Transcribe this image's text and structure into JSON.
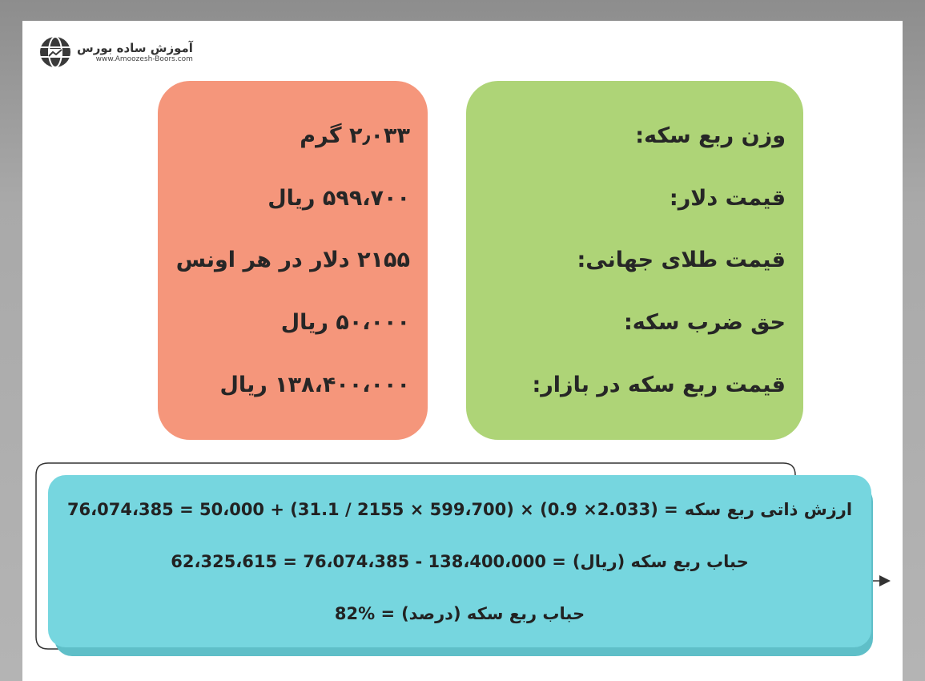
{
  "logo": {
    "name": "آموزش ساده بورس",
    "url": "www.Amoozesh-Boors.com"
  },
  "labels": [
    "وزن ربع سکه:",
    "قیمت دلار:",
    "قیمت طلای جهانی:",
    "حق ضرب سکه:",
    "قیمت ربع سکه در بازار:"
  ],
  "values": [
    "۲٫۰۳۳ گرم",
    "۵۹۹،۷۰۰ ریال",
    "۲۱۵۵ دلار در هر اونس",
    "۵۰،۰۰۰ ریال",
    "۱۳۸،۴۰۰،۰۰۰ ریال"
  ],
  "formulas": [
    {
      "expr": "76،074،385 = 50،000 + (31.1 / 2155 × 599،700) × (0.9 ×2.033) =",
      "label": "ارزش ذاتی ربع سکه"
    },
    {
      "expr": "62،325،615 = 76،074،385 - 138،400،000 =",
      "label": "حباب ربع سکه (ریال)"
    },
    {
      "expr": "82% =",
      "label": "حباب ربع سکه (درصد)"
    }
  ],
  "colors": {
    "green": "#aed477",
    "orange": "#f5967b",
    "cyan": "#76d6df"
  }
}
